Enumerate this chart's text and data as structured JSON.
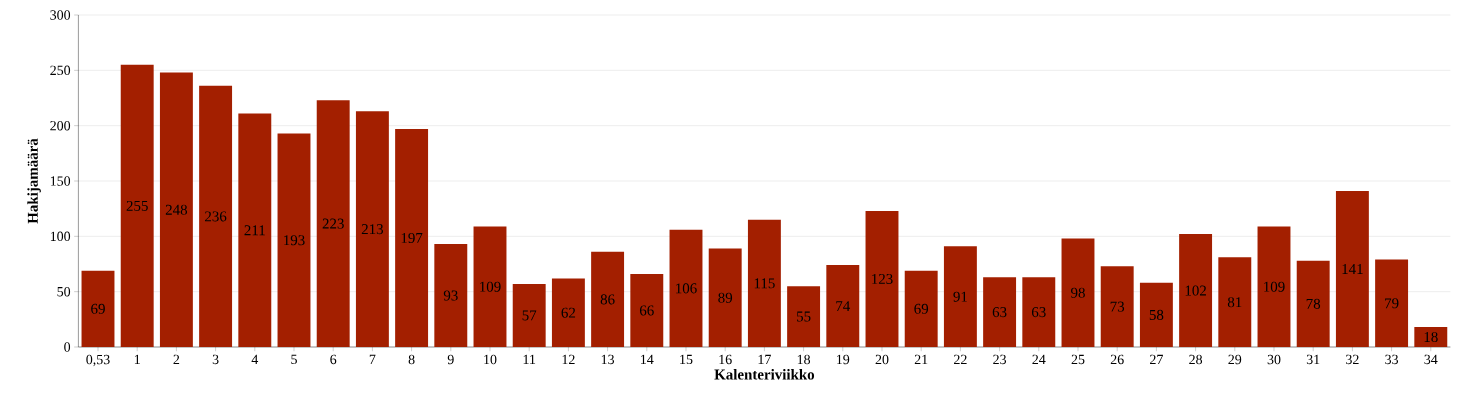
{
  "chart_data": {
    "type": "bar",
    "xlabel": "Kalenteriviikko",
    "ylabel": "Hakijamäärä",
    "categories": [
      "0,53",
      "1",
      "2",
      "3",
      "4",
      "5",
      "6",
      "7",
      "8",
      "9",
      "10",
      "11",
      "12",
      "13",
      "14",
      "15",
      "16",
      "17",
      "18",
      "19",
      "20",
      "21",
      "22",
      "23",
      "24",
      "25",
      "26",
      "27",
      "28",
      "29",
      "30",
      "31",
      "32",
      "33",
      "34"
    ],
    "values": [
      69,
      255,
      248,
      236,
      211,
      193,
      223,
      213,
      197,
      93,
      109,
      57,
      62,
      86,
      66,
      106,
      89,
      115,
      55,
      74,
      123,
      69,
      91,
      63,
      63,
      98,
      73,
      58,
      102,
      81,
      109,
      78,
      141,
      79,
      18
    ],
    "color": "#a31f00",
    "ylim": [
      0,
      300
    ],
    "yticks": [
      0,
      50,
      100,
      150,
      200,
      250,
      300
    ],
    "grid": "y",
    "data_labels": true
  }
}
